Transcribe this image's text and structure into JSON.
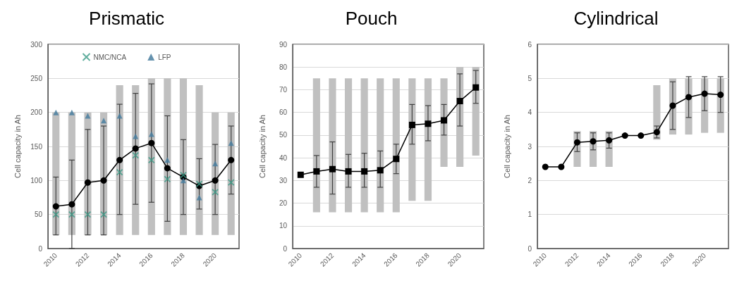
{
  "chart_data": [
    {
      "type": "bar",
      "title": "Prismatic",
      "ylabel": "Cell capacity in Ah",
      "categories": [
        "2010",
        null,
        "2012",
        null,
        "2014",
        null,
        "2016",
        null,
        "2018",
        null,
        "2020",
        null
      ],
      "ylim": [
        0,
        300
      ],
      "yticks": [
        0,
        50,
        100,
        150,
        200,
        250,
        300
      ],
      "grid": "y",
      "legend": "top",
      "series": [
        {
          "color": "#c0c0c0",
          "base": [
            20,
            20,
            20,
            20,
            20,
            20,
            20,
            20,
            20,
            20,
            20,
            20
          ],
          "values": [
            180,
            180,
            180,
            180,
            220,
            220,
            230,
            230,
            230,
            220,
            180,
            180
          ]
        },
        {
          "type": "line",
          "color": "#000000",
          "marker": "circle",
          "values": [
            62,
            65,
            97,
            100,
            130,
            147,
            155,
            118,
            105,
            92,
            100,
            130
          ],
          "errors": [
            [
              20,
              105
            ],
            [
              0,
              130
            ],
            [
              20,
              175
            ],
            [
              20,
              180
            ],
            [
              50,
              212
            ],
            [
              65,
              228
            ],
            [
              68,
              242
            ],
            [
              40,
              195
            ],
            [
              50,
              160
            ],
            [
              58,
              132
            ],
            [
              50,
              153
            ],
            [
              80,
              180
            ]
          ]
        },
        {
          "type": "scatter",
          "name": "NMC/NCA",
          "color": "#3a9a86",
          "marker": "cross",
          "values": [
            50,
            50,
            50,
            50,
            112,
            137,
            130,
            102,
            108,
            95,
            83,
            97
          ]
        },
        {
          "type": "scatter",
          "name": "LFP",
          "color": "#4a7fa0",
          "marker": "triangle",
          "values": [
            200,
            200,
            195,
            188,
            195,
            165,
            168,
            130,
            100,
            75,
            125,
            155
          ]
        }
      ]
    },
    {
      "type": "bar",
      "title": "Pouch",
      "ylabel": "Cell capacity in Ah",
      "categories": [
        "2010",
        null,
        "2012",
        null,
        "2014",
        null,
        "2016",
        null,
        "2018",
        null,
        "2020",
        null
      ],
      "ylim": [
        0,
        90
      ],
      "yticks": [
        0,
        10,
        20,
        30,
        40,
        50,
        60,
        70,
        80,
        90
      ],
      "grid": "y",
      "series": [
        {
          "color": "#c0c0c0",
          "base": [
            null,
            16,
            16,
            16,
            16,
            16,
            16,
            21,
            21,
            36,
            36,
            41
          ],
          "values": [
            null,
            59,
            59,
            59,
            59,
            59,
            59,
            54,
            54,
            39,
            44,
            39
          ]
        },
        {
          "type": "line",
          "color": "#000000",
          "marker": "square",
          "values": [
            32.5,
            34,
            35,
            34,
            34,
            34.5,
            39.5,
            54.5,
            55,
            56.5,
            65,
            71
          ],
          "errors": [
            null,
            [
              27,
              41
            ],
            [
              24,
              47
            ],
            [
              27,
              41.5
            ],
            [
              27,
              42
            ],
            [
              27,
              43
            ],
            [
              33,
              46
            ],
            [
              46,
              63.5
            ],
            [
              47.5,
              63
            ],
            [
              50,
              63.5
            ],
            [
              54,
              77
            ],
            [
              64,
              78.5
            ]
          ]
        }
      ]
    },
    {
      "type": "bar",
      "title": "Cylindrical",
      "ylabel": "Cell capacity in Ah",
      "categories": [
        "2010",
        null,
        "2012",
        null,
        "2014",
        null,
        "2016",
        null,
        "2018",
        null,
        "2020",
        null
      ],
      "ylim": [
        0,
        6
      ],
      "yticks": [
        0,
        1,
        2,
        3,
        4,
        5,
        6
      ],
      "grid": "y",
      "series": [
        {
          "color": "#c0c0c0",
          "base": [
            null,
            null,
            2.4,
            2.4,
            2.4,
            null,
            null,
            3.2,
            3.35,
            3.35,
            3.4,
            3.4
          ],
          "values": [
            null,
            null,
            1.05,
            1.05,
            1.05,
            null,
            null,
            1.6,
            1.65,
            1.65,
            1.6,
            1.6
          ]
        },
        {
          "type": "line",
          "color": "#000000",
          "marker": "circle",
          "values": [
            2.4,
            2.4,
            3.12,
            3.15,
            3.18,
            3.32,
            3.32,
            3.42,
            4.2,
            4.45,
            4.55,
            4.52
          ],
          "errors": [
            null,
            null,
            [
              2.85,
              3.4
            ],
            [
              2.9,
              3.4
            ],
            [
              2.95,
              3.4
            ],
            null,
            null,
            [
              3.25,
              3.6
            ],
            [
              3.5,
              4.9
            ],
            [
              3.85,
              5.05
            ],
            [
              4.05,
              5.05
            ],
            [
              4.0,
              5.05
            ]
          ]
        }
      ]
    }
  ]
}
